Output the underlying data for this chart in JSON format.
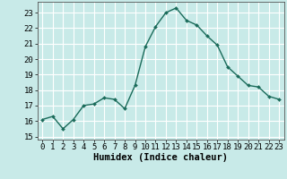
{
  "x": [
    0,
    1,
    2,
    3,
    4,
    5,
    6,
    7,
    8,
    9,
    10,
    11,
    12,
    13,
    14,
    15,
    16,
    17,
    18,
    19,
    20,
    21,
    22,
    23
  ],
  "y": [
    16.1,
    16.3,
    15.5,
    16.1,
    17.0,
    17.1,
    17.5,
    17.4,
    16.8,
    18.3,
    20.8,
    22.1,
    23.0,
    23.3,
    22.5,
    22.2,
    21.5,
    20.9,
    19.5,
    18.9,
    18.3,
    18.2,
    17.6,
    17.4
  ],
  "line_color": "#1a6b5a",
  "marker": "D",
  "marker_size": 2,
  "bg_color": "#c8eae8",
  "grid_color": "#ffffff",
  "xlabel": "Humidex (Indice chaleur)",
  "xlim": [
    -0.5,
    23.5
  ],
  "ylim": [
    14.8,
    23.7
  ],
  "yticks": [
    15,
    16,
    17,
    18,
    19,
    20,
    21,
    22,
    23
  ],
  "xticks": [
    0,
    1,
    2,
    3,
    4,
    5,
    6,
    7,
    8,
    9,
    10,
    11,
    12,
    13,
    14,
    15,
    16,
    17,
    18,
    19,
    20,
    21,
    22,
    23
  ],
  "tick_fontsize": 6.5,
  "xlabel_fontsize": 7.5,
  "linewidth": 1.0
}
